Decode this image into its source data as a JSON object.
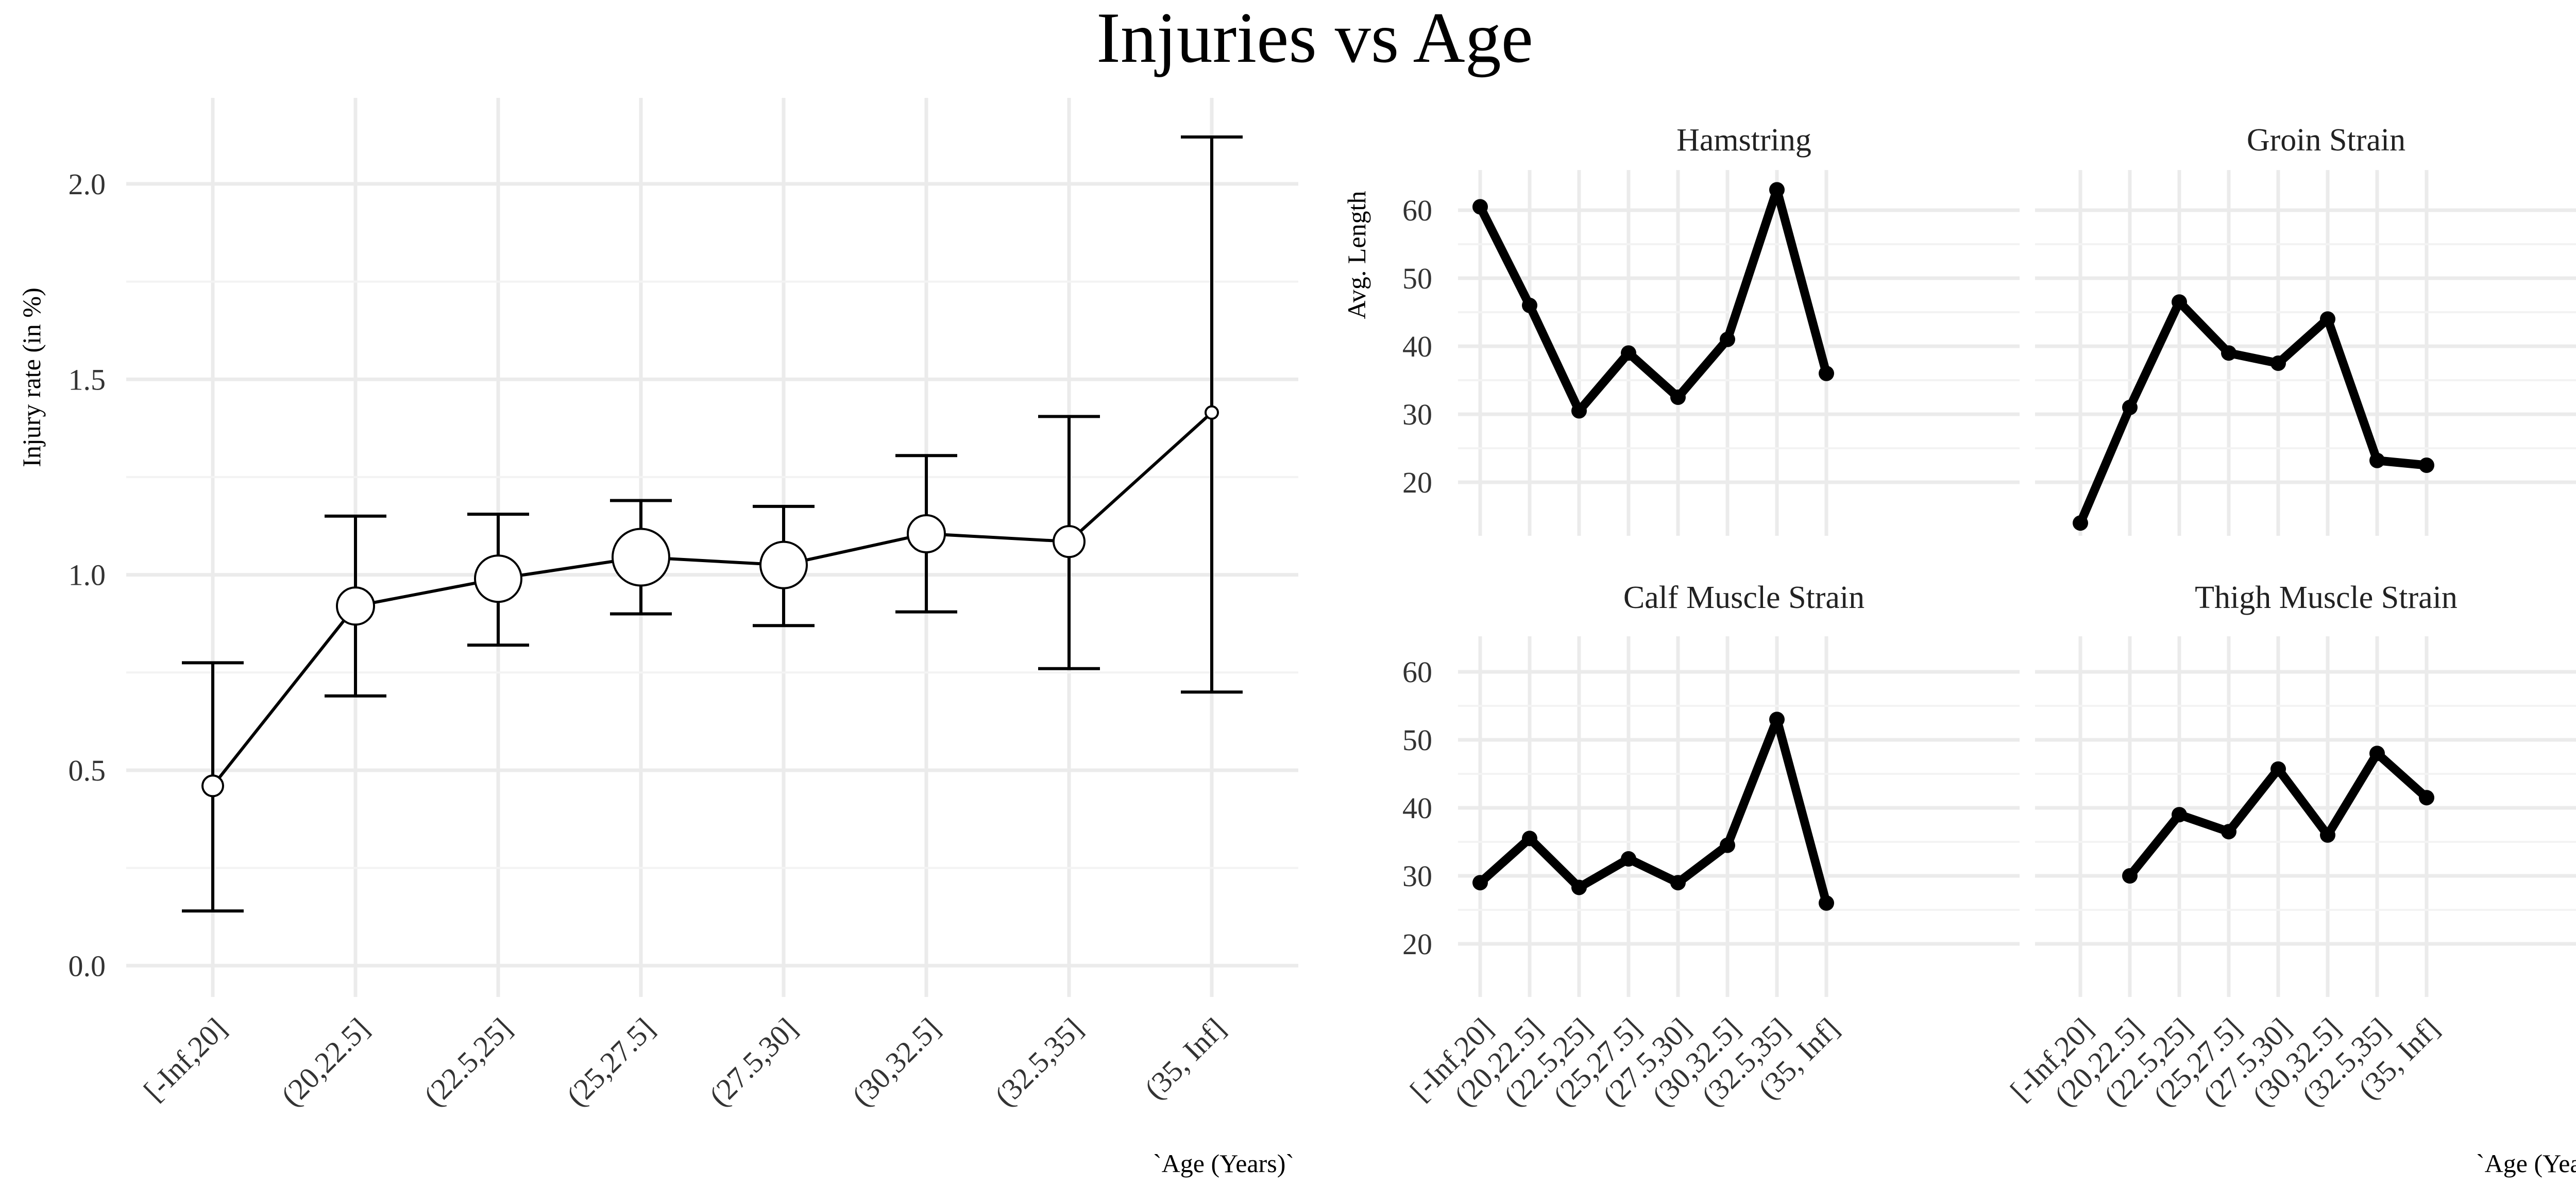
{
  "title": "Injuries vs Age",
  "x_axis_title": "`Age (Years)`",
  "chart_data": [
    {
      "type": "scatter",
      "name": "injury-rate",
      "ylabel": "Injury rate (in %)",
      "xlabel": "`Age (Years)`",
      "categories": [
        "[-Inf,20]",
        "(20,22.5]",
        "(22.5,25]",
        "(25,27.5]",
        "(27.5,30]",
        "(30,32.5]",
        "(32.5,35]",
        "(35, Inf]"
      ],
      "values": [
        0.46,
        0.92,
        0.99,
        1.045,
        1.025,
        1.105,
        1.085,
        1.415
      ],
      "error_low": [
        0.14,
        0.69,
        0.82,
        0.9,
        0.87,
        0.905,
        0.76,
        0.7
      ],
      "error_high": [
        0.775,
        1.15,
        1.155,
        1.19,
        1.175,
        1.305,
        1.405,
        2.12
      ],
      "point_size": [
        2,
        5,
        6,
        7,
        6,
        5,
        3,
        1
      ],
      "ylim": [
        -0.08,
        2.22
      ],
      "yticks": [
        0.0,
        0.5,
        1.0,
        1.5,
        2.0
      ],
      "ytick_labels": [
        "0.0",
        "0.5",
        "1.0",
        "1.5",
        "2.0"
      ],
      "grid": true
    },
    {
      "type": "line",
      "name": "avg-length-facets",
      "ylabel": "Avg. Length",
      "xlabel": "`Age (Years)`",
      "categories": [
        "[-Inf,20]",
        "(20,22.5]",
        "(22.5,25]",
        "(25,27.5]",
        "(27.5,30]",
        "(30,32.5]",
        "(32.5,35]",
        "(35, Inf]"
      ],
      "ylim": [
        10,
        65
      ],
      "yticks": [
        20,
        30,
        40,
        50,
        60
      ],
      "ytick_labels": [
        "20",
        "30",
        "40",
        "50",
        "60"
      ],
      "grid": true,
      "panels": [
        {
          "name": "Hamstring",
          "values": [
            60.5,
            46,
            30.5,
            39,
            32.5,
            41,
            63,
            36
          ]
        },
        {
          "name": "Groin Strain",
          "values": [
            14,
            31,
            46.5,
            39,
            37.5,
            44,
            23.2,
            22.5
          ]
        },
        {
          "name": "Calf Muscle Strain",
          "values": [
            29,
            35.5,
            28.3,
            32.5,
            29,
            34.5,
            53,
            26
          ]
        },
        {
          "name": "Thigh Muscle Strain",
          "values": [
            null,
            30,
            39,
            36.5,
            45.7,
            36,
            48,
            41.5
          ]
        }
      ]
    }
  ]
}
